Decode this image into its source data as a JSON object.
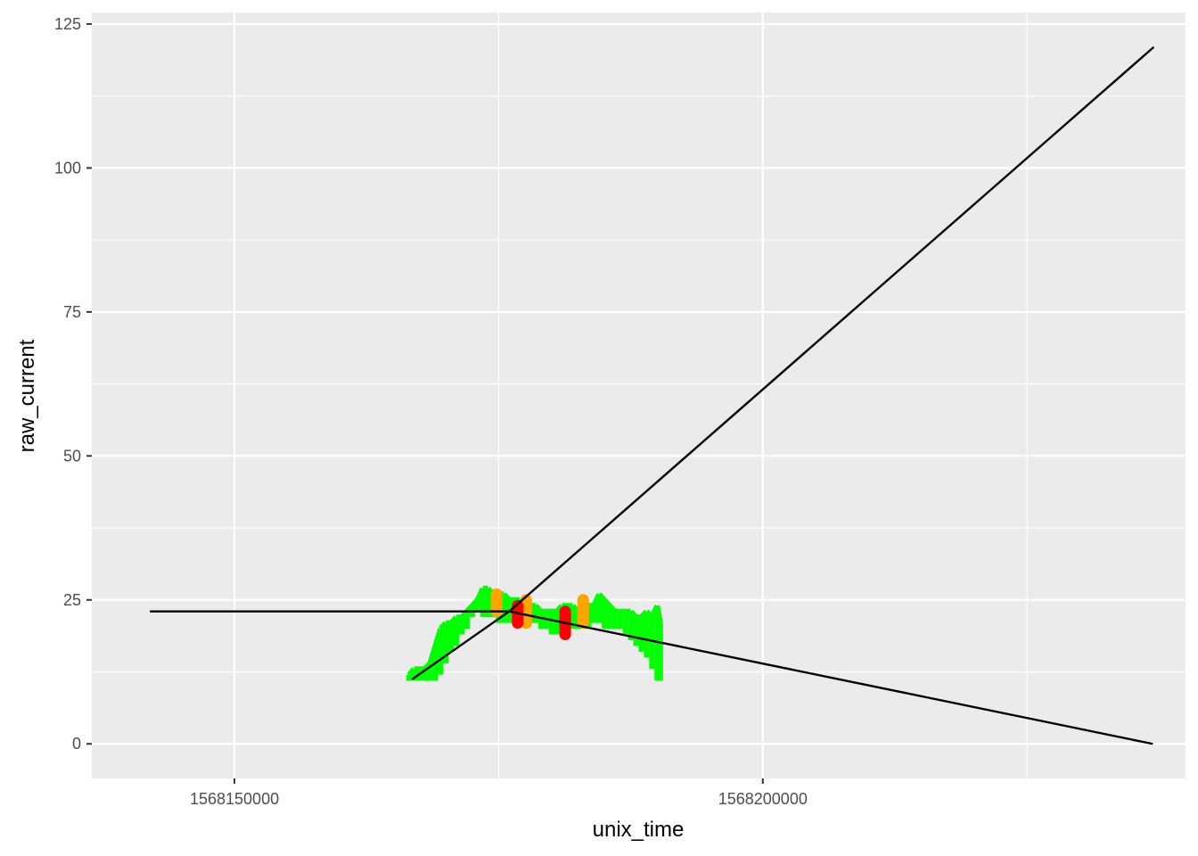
{
  "chart_data": {
    "type": "line",
    "title": "",
    "xlabel": "unix_time",
    "ylabel": "raw_current",
    "xlim": [
      1568136500,
      1568240000
    ],
    "ylim": [
      -6,
      127
    ],
    "x_major_ticks": [
      1568150000,
      1568200000
    ],
    "x_minor_ticks": [
      1568125000,
      1568175000,
      1568225000
    ],
    "y_major_ticks": [
      0,
      25,
      50,
      75,
      100,
      125
    ],
    "y_tick_labels": [
      "0",
      "25",
      "50",
      "75",
      "100",
      "125"
    ],
    "x_tick_labels": [
      "1568150000",
      "1568200000"
    ],
    "grid": true,
    "legend": "none",
    "colors": {
      "panel": "#ebebeb",
      "grid": "#ffffff",
      "normal": "#00ff00",
      "warning": "#ffa500",
      "alarm": "#ff0000",
      "trend": "#000000"
    },
    "series": [
      {
        "color": "green",
        "x": [
          1568166500,
          1568167000,
          1568167500,
          1568168000,
          1568168500,
          1568169000,
          1568169500,
          1568170000,
          1568170500,
          1568171000,
          1568171500,
          1568172000,
          1568172500,
          1568173000,
          1568173500,
          1568174000,
          1568174500,
          1568175000,
          1568175500,
          1568176000,
          1568176500,
          1568177000,
          1568177500,
          1568178000,
          1568178500,
          1568179000,
          1568179500,
          1568180000,
          1568180500,
          1568181000,
          1568181500,
          1568182000,
          1568182500,
          1568183000,
          1568183500,
          1568184000,
          1568184500,
          1568185000,
          1568185500,
          1568186000,
          1568186500,
          1568187000,
          1568187500,
          1568188000,
          1568188500,
          1568189000,
          1568189500,
          1568190000,
          1568190300
        ],
        "low": [
          11,
          11,
          11,
          11,
          11,
          11,
          12,
          14,
          16,
          17,
          19,
          20,
          22,
          23,
          22,
          22,
          22,
          21,
          21,
          21,
          21,
          21,
          21,
          21,
          21,
          20,
          20,
          19,
          19,
          19,
          20,
          20,
          20,
          20,
          20,
          21,
          21,
          20,
          20,
          20,
          20,
          19,
          18,
          17,
          16,
          15,
          13,
          11,
          11
        ],
        "high": [
          12,
          13,
          13,
          13,
          14,
          17,
          20,
          21,
          21,
          22,
          22,
          23,
          24,
          25,
          27,
          27,
          26,
          26,
          26,
          25,
          25,
          25,
          24,
          24,
          24,
          23,
          23,
          23,
          23,
          24,
          24,
          24,
          23,
          23,
          24,
          24,
          26,
          25,
          24,
          23,
          23,
          23,
          23,
          22,
          22,
          23,
          22,
          24,
          21
        ]
      },
      {
        "color": "orange",
        "points": [
          [
            1568174800,
            26
          ],
          [
            1568174800,
            23
          ],
          [
            1568177600,
            25
          ],
          [
            1568177600,
            21
          ],
          [
            1568183000,
            25
          ],
          [
            1568183000,
            21
          ]
        ]
      },
      {
        "color": "red",
        "points": [
          [
            1568176800,
            24
          ],
          [
            1568176800,
            21
          ],
          [
            1568181300,
            23
          ],
          [
            1568181300,
            19
          ]
        ]
      },
      {
        "color": "black",
        "points": [
          [
            1568162000,
            23
          ],
          [
            1568162000,
            23
          ]
        ]
      },
      {
        "color": "black",
        "points": [
          [
            1568166800,
            11.2
          ],
          [
            1568176000,
            23
          ]
        ]
      },
      {
        "color": "black",
        "points": [
          [
            1568176000,
            23
          ],
          [
            1568236900,
            0
          ]
        ]
      },
      {
        "color": "black",
        "points": [
          [
            1568176000,
            23
          ],
          [
            1568237000,
            121
          ]
        ]
      },
      {
        "color": "black",
        "points": [
          [
            1568142000,
            23
          ],
          [
            1568176000,
            23
          ]
        ]
      }
    ]
  }
}
